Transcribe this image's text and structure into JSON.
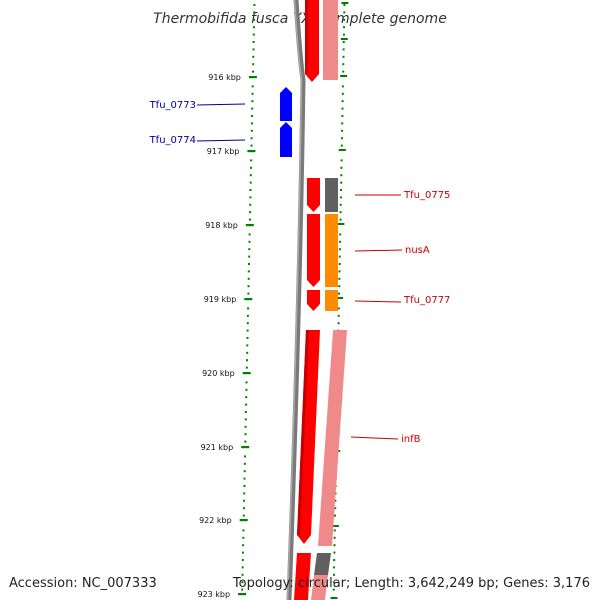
{
  "title": "Thermobifida fusca YX, complete genome",
  "footer": {
    "accession": "Accession: NC_007333",
    "topology": "Topology: circular; Length: 3,642,249 bp; Genes: 3,176"
  },
  "colors": {
    "forward_cds": "#ff0000",
    "forward_cds_light": "#f08a8a",
    "reverse_cds": "#0000ff",
    "backbone": "#808080",
    "trna_gray": "#606060",
    "orange": "#ff8c00",
    "tick_green": "#008000",
    "label_red": "#cc0000",
    "label_blue": "#000099"
  },
  "scale": {
    "ticks": [
      "916 kbp",
      "917 kbp",
      "918 kbp",
      "919 kbp",
      "920 kbp",
      "921 kbp",
      "922 kbp",
      "923 kbp"
    ]
  },
  "gene_labels": [
    {
      "name": "Tfu_0773",
      "strand": "reverse"
    },
    {
      "name": "Tfu_0774",
      "strand": "reverse"
    },
    {
      "name": "Tfu_0775",
      "strand": "forward"
    },
    {
      "name": "nusA",
      "strand": "forward"
    },
    {
      "name": "Tfu_0777",
      "strand": "forward"
    },
    {
      "name": "infB",
      "strand": "forward"
    }
  ]
}
